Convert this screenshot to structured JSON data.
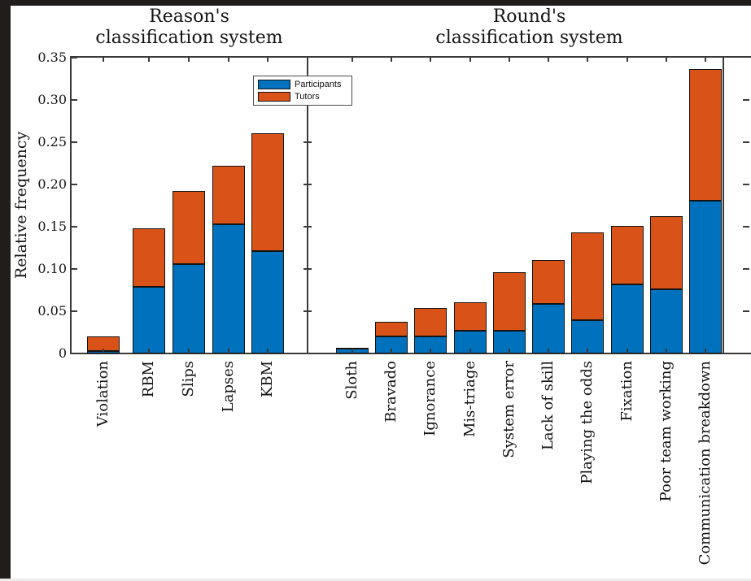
{
  "figure": {
    "ylabel": "Relative frequency",
    "axis_color": "#3a3a3a",
    "background_color": "#ffffff",
    "frame_color": "#201d1b",
    "legend": {
      "items": [
        {
          "label": "Participants",
          "color": "#0072BD"
        },
        {
          "label": "Tutors",
          "color": "#D95319"
        }
      ]
    }
  },
  "chart_data": [
    {
      "type": "bar",
      "stacked": true,
      "title": "Reason's classification system",
      "title_lines": [
        "Reason's",
        "classification system"
      ],
      "categories": [
        "Violation",
        "RBM",
        "Slips",
        "Lapses",
        "KBM"
      ],
      "series": [
        {
          "name": "Participants",
          "color": "#0072BD",
          "values": [
            0.003,
            0.079,
            0.106,
            0.153,
            0.121
          ]
        },
        {
          "name": "Tutors",
          "color": "#D95319",
          "values": [
            0.017,
            0.069,
            0.087,
            0.069,
            0.139
          ]
        }
      ],
      "totals": [
        0.02,
        0.148,
        0.193,
        0.222,
        0.26
      ],
      "ylabel": "Relative frequency",
      "ylim": [
        0,
        0.35
      ],
      "yticks": [
        0,
        0.05,
        0.1,
        0.15,
        0.2,
        0.25,
        0.3,
        0.35
      ],
      "ytick_labels": [
        "0",
        "0.05",
        "0.10",
        "0.15",
        "0.20",
        "0.25",
        "0.30",
        "0.35"
      ],
      "grid": false,
      "legend_position": "top-right"
    },
    {
      "type": "bar",
      "stacked": true,
      "title": "Round's classification system",
      "title_lines": [
        "Round's",
        "classification system"
      ],
      "categories": [
        "Sloth",
        "Bravado",
        "Ignorance",
        "Mis-triage",
        "System error",
        "Lack of skill",
        "Playing the odds",
        "Fixation",
        "Poor team working",
        "Communication breakdown"
      ],
      "series": [
        {
          "name": "Participants",
          "color": "#0072BD",
          "values": [
            0.006,
            0.02,
            0.02,
            0.027,
            0.027,
            0.059,
            0.039,
            0.082,
            0.076,
            0.181
          ]
        },
        {
          "name": "Tutors",
          "color": "#D95319",
          "values": [
            0.001,
            0.017,
            0.034,
            0.034,
            0.069,
            0.052,
            0.104,
            0.069,
            0.087,
            0.156
          ]
        }
      ],
      "totals": [
        0.007,
        0.037,
        0.054,
        0.061,
        0.096,
        0.111,
        0.143,
        0.151,
        0.163,
        0.337
      ],
      "ylim": [
        0,
        0.35
      ],
      "yticks": [
        0,
        0.05,
        0.1,
        0.15,
        0.2,
        0.25,
        0.3,
        0.35
      ],
      "ytick_labels": [
        "0",
        "0.05",
        "0.10",
        "0.15",
        "0.20",
        "0.25",
        "0.30",
        "0.35"
      ],
      "grid": false
    }
  ]
}
